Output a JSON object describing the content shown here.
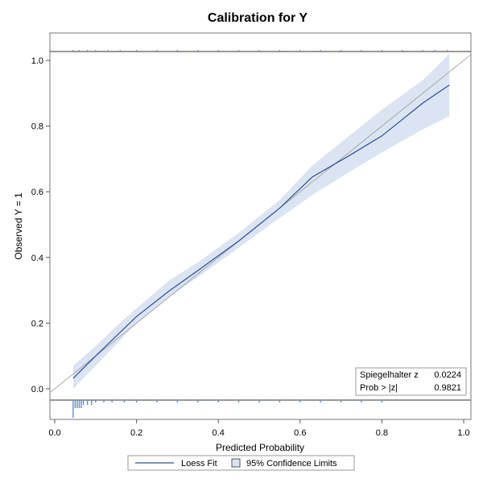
{
  "chart_data": {
    "type": "line",
    "title": "Calibration for Y",
    "xlabel": "Predicted Probability",
    "ylabel": "Observed Y = 1",
    "xlim": [
      -0.01,
      1.02
    ],
    "ylim": [
      -0.09,
      1.07
    ],
    "x_ticks": [
      0.0,
      0.2,
      0.4,
      0.6,
      0.8,
      1.0
    ],
    "x_tick_labels": [
      "0.0",
      "0.2",
      "0.4",
      "0.6",
      "0.8",
      "1.0"
    ],
    "y_ticks": [
      0.0,
      0.2,
      0.4,
      0.6,
      0.8,
      1.0
    ],
    "y_tick_labels": [
      "0.0",
      "0.2",
      "0.4",
      "0.6",
      "0.8",
      "1.0"
    ],
    "grid": false,
    "reference_line": {
      "x": [
        -0.01,
        1.02
      ],
      "y": [
        -0.01,
        1.02
      ]
    },
    "outcome_levels": [
      0,
      1
    ],
    "series": [
      {
        "name": "Loess Fit",
        "color": "#2e4d9c",
        "x": [
          0.045,
          0.1,
          0.15,
          0.2,
          0.28,
          0.35,
          0.45,
          0.55,
          0.63,
          0.72,
          0.8,
          0.9,
          0.965
        ],
        "y": [
          0.032,
          0.1,
          0.16,
          0.22,
          0.298,
          0.36,
          0.45,
          0.55,
          0.645,
          0.71,
          0.77,
          0.87,
          0.925
        ]
      }
    ],
    "confidence_band": {
      "name": "95% Confidence Limits",
      "fill": "#dbe4f2",
      "x": [
        0.045,
        0.1,
        0.15,
        0.2,
        0.28,
        0.35,
        0.45,
        0.55,
        0.63,
        0.72,
        0.8,
        0.9,
        0.965
      ],
      "lower": [
        0.0,
        0.07,
        0.135,
        0.2,
        0.28,
        0.34,
        0.43,
        0.52,
        0.59,
        0.66,
        0.72,
        0.79,
        0.83
      ],
      "upper": [
        0.07,
        0.13,
        0.19,
        0.245,
        0.33,
        0.385,
        0.475,
        0.575,
        0.68,
        0.77,
        0.85,
        0.94,
        1.02
      ]
    },
    "rug_color": "#6e8bc6",
    "rug_top_x": [
      0.045,
      0.06,
      0.08,
      0.1,
      0.13,
      0.16,
      0.2,
      0.25,
      0.3,
      0.35,
      0.4,
      0.45,
      0.5,
      0.55,
      0.6,
      0.65,
      0.7,
      0.75,
      0.8,
      0.85,
      0.9,
      0.93,
      0.96
    ],
    "rug_bottom_x": [
      0.045,
      0.05,
      0.055,
      0.06,
      0.065,
      0.07,
      0.08,
      0.09,
      0.1,
      0.12,
      0.14,
      0.17,
      0.2,
      0.25,
      0.3,
      0.35,
      0.4,
      0.45,
      0.5,
      0.55,
      0.6,
      0.65,
      0.7,
      0.75,
      0.8
    ],
    "stats_box": {
      "rows": [
        {
          "label": "Spiegelhalter z",
          "value": "0.0224"
        },
        {
          "label": "Prob > |z|",
          "value": "0.9821"
        }
      ],
      "placement": "bottom-right"
    },
    "legend": {
      "placement": "bottom",
      "entries": [
        "Loess Fit",
        "95% Confidence Limits"
      ]
    }
  }
}
